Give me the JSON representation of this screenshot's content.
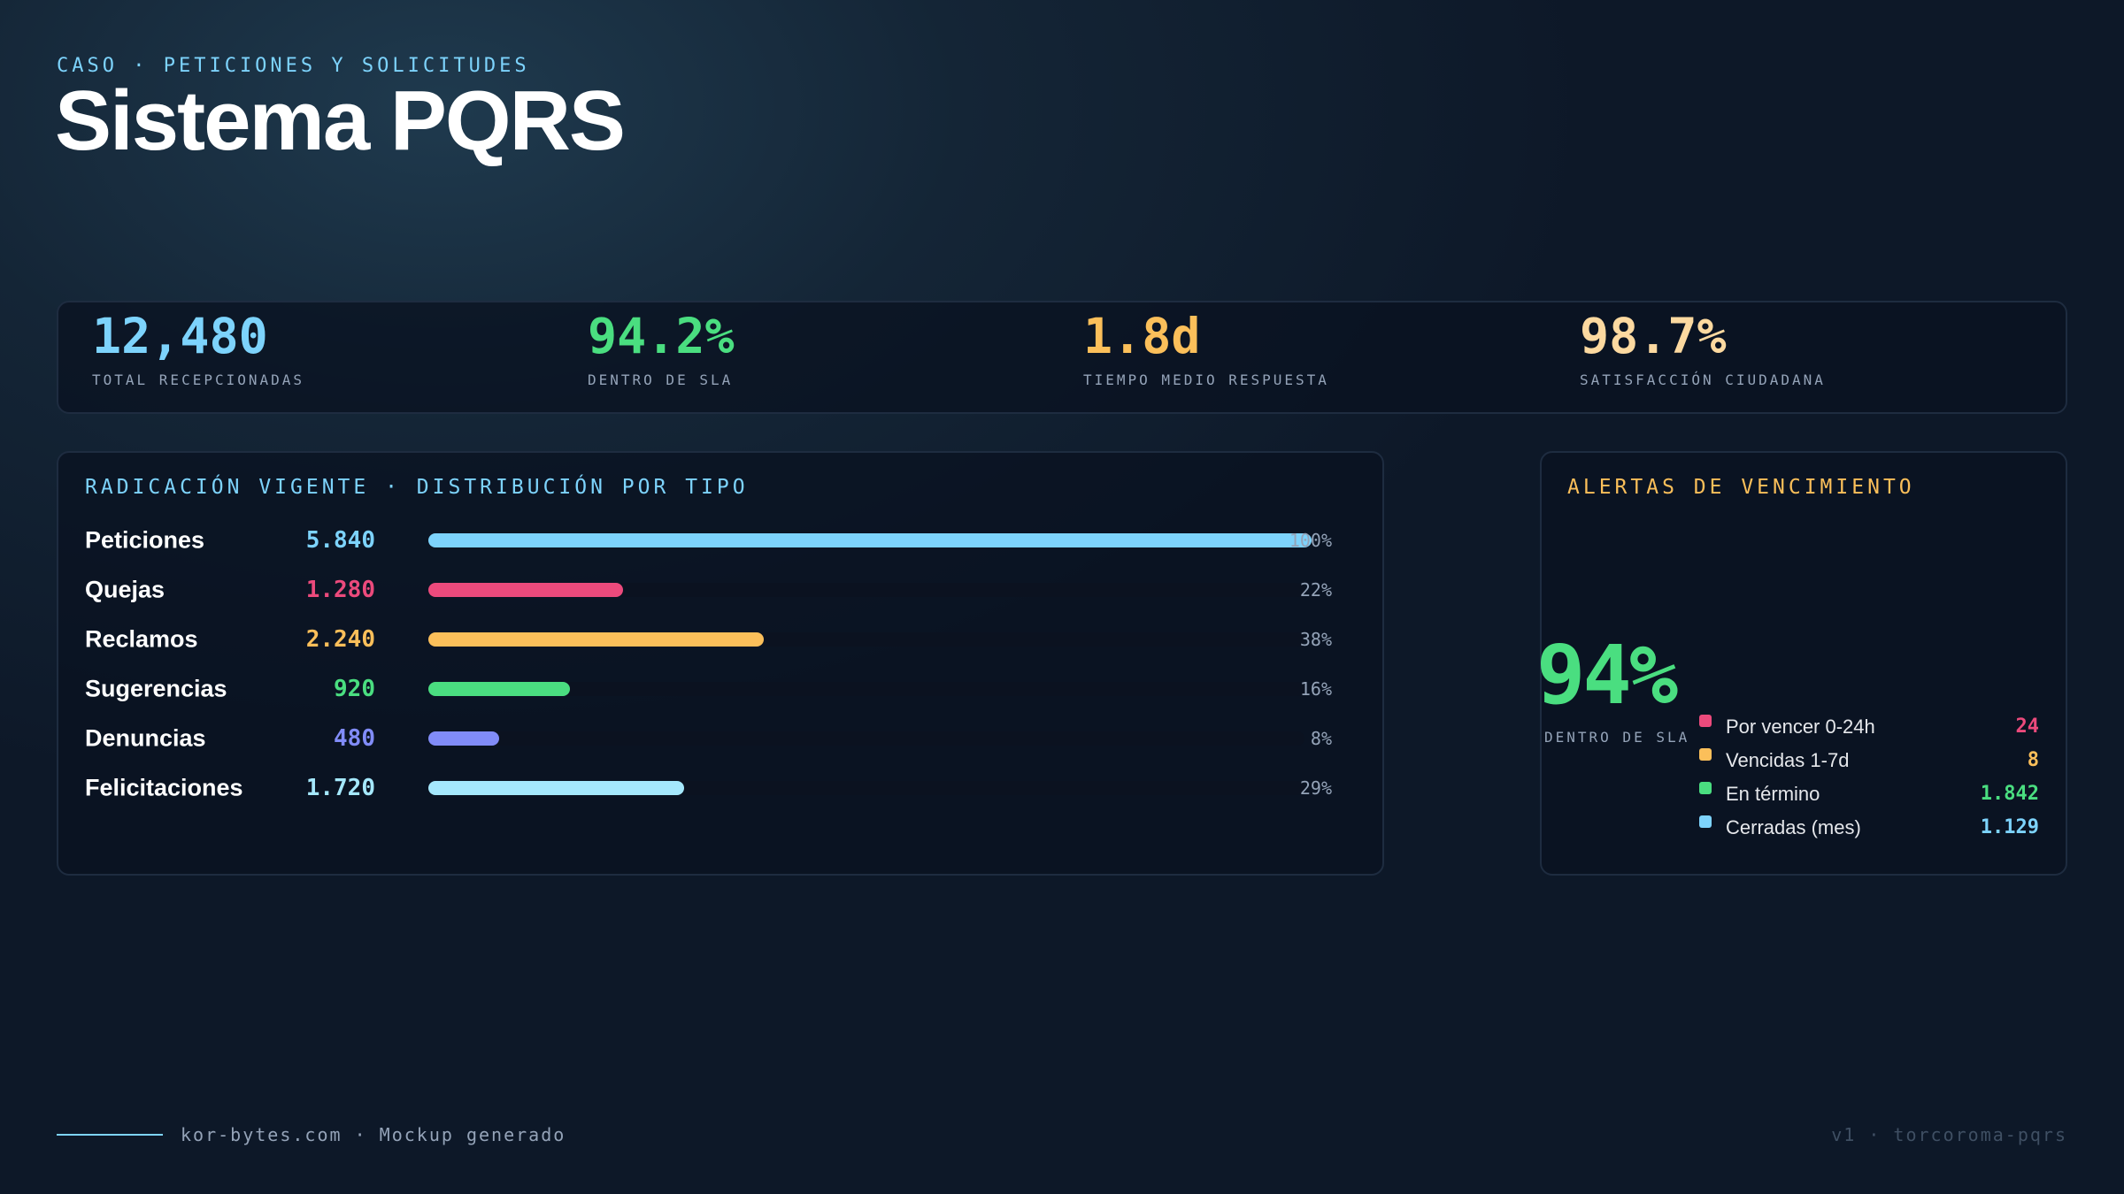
{
  "header": {
    "kicker": "CASO · PETICIONES Y SOLICITUDES",
    "title": "Sistema PQRS"
  },
  "kpis": [
    {
      "value": "12,480",
      "label": "TOTAL RECEPCIONADAS",
      "color": "#7dd3fc"
    },
    {
      "value": "94.2%",
      "label": "DENTRO DE SLA",
      "color": "#4ade80"
    },
    {
      "value": "1.8d",
      "label": "TIEMPO MEDIO RESPUESTA",
      "color": "#fbbf5a"
    },
    {
      "value": "98.7%",
      "label": "SATISFACCIÓN CIUDADANA",
      "color": "#fcd9a0"
    }
  ],
  "distribution": {
    "title": "RADICACIÓN VIGENTE · DISTRIBUCIÓN POR TIPO",
    "rows": [
      {
        "name": "Peticiones",
        "value": "5.840",
        "pct": 100,
        "pct_label": "100%",
        "color": "#7dd3fc"
      },
      {
        "name": "Quejas",
        "value": "1.280",
        "pct": 22,
        "pct_label": "22%",
        "color": "#ec4a7c"
      },
      {
        "name": "Reclamos",
        "value": "2.240",
        "pct": 38,
        "pct_label": "38%",
        "color": "#fbbf5a"
      },
      {
        "name": "Sugerencias",
        "value": "920",
        "pct": 16,
        "pct_label": "16%",
        "color": "#4ade80"
      },
      {
        "name": "Denuncias",
        "value": "480",
        "pct": 8,
        "pct_label": "8%",
        "color": "#818cf8"
      },
      {
        "name": "Felicitaciones",
        "value": "1.720",
        "pct": 29,
        "pct_label": "29%",
        "color": "#a5e8fd"
      }
    ]
  },
  "alerts": {
    "title": "ALERTAS DE VENCIMIENTO",
    "big_value": "94%",
    "big_label": "DENTRO DE SLA",
    "items": [
      {
        "label": "Por vencer 0-24h",
        "value": "24",
        "color": "#ec4a7c"
      },
      {
        "label": "Vencidas 1-7d",
        "value": "8",
        "color": "#fbbf5a"
      },
      {
        "label": "En término",
        "value": "1.842",
        "color": "#4ade80"
      },
      {
        "label": "Cerradas (mes)",
        "value": "1.129",
        "color": "#7dd3fc"
      }
    ]
  },
  "footer": {
    "left": "kor-bytes.com · Mockup generado",
    "right": "v1 · torcoroma-pqrs"
  }
}
